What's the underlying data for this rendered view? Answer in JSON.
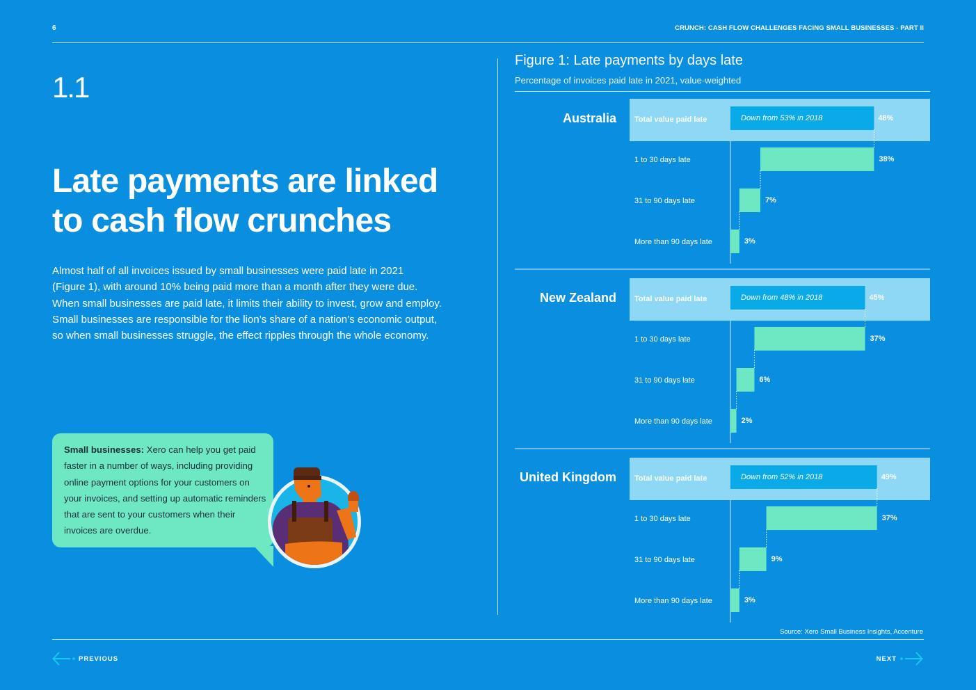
{
  "header": {
    "page_number": "6",
    "running_title": "CRUNCH: CASH FLOW CHALLENGES FACING SMALL BUSINESSES - PART II"
  },
  "section": {
    "number": "1.1",
    "headline_line1": "Late payments are linked",
    "headline_line2": "to cash flow crunches",
    "body_lines": [
      "Almost half of all invoices issued by small businesses were paid late in 2021",
      "(Figure 1), with around 10% being paid more than a month after they were due.",
      "When small businesses are paid late, it limits their ability to invest, grow and employ.",
      "Small businesses are responsible for the lion’s share of a nation’s economic output,",
      "so when small businesses struggle, the effect ripples through the whole economy."
    ]
  },
  "callout": {
    "lead": "Small businesses:",
    "text": "Xero can help you get paid faster in a number of ways, including providing online payment options for your customers on your invoices, and setting up automatic reminders that are sent to your customers when their invoices are overdue."
  },
  "chart_data": {
    "type": "bar",
    "orientation": "horizontal waterfall",
    "title": "Figure 1: Late payments by days late",
    "subtitle": "Percentage of invoices paid late in 2021, value-weighted",
    "unit": "%",
    "categories": [
      "1 to 30 days late",
      "31 to 90 days late",
      "More than 90 days late"
    ],
    "total_label": "Total value paid late",
    "groups": [
      {
        "name": "Australia",
        "total": 48,
        "total_label_text": "48%",
        "note": "Down from 53% in 2018",
        "values": [
          38,
          7,
          3
        ],
        "value_labels": [
          "38%",
          "7%",
          "3%"
        ]
      },
      {
        "name": "New Zealand",
        "total": 45,
        "total_label_text": "45%",
        "note": "Down from 48% in 2018",
        "values": [
          37,
          6,
          2
        ],
        "value_labels": [
          "37%",
          "6%",
          "2%"
        ]
      },
      {
        "name": "United Kingdom",
        "total": 49,
        "total_label_text": "49%",
        "note": "Down from 52% in 2018",
        "values": [
          37,
          9,
          3
        ],
        "value_labels": [
          "37%",
          "9%",
          "3%"
        ]
      }
    ],
    "source": "Source: Xero Small Business Insights, Accenture"
  },
  "colors": {
    "background": "#0a8ee0",
    "total_band": "#8fd8f5",
    "total_bar": "#0aaae8",
    "segment_bar": "#6ee8c2",
    "callout": "#6ee8c2",
    "nav_arrow": "#18c8f0"
  },
  "icons": {
    "previous": "arrow-left-icon",
    "next": "arrow-right-icon",
    "illustration": "worker-avatar-icon"
  },
  "nav": {
    "previous_label": "PREVIOUS",
    "next_label": "NEXT"
  }
}
